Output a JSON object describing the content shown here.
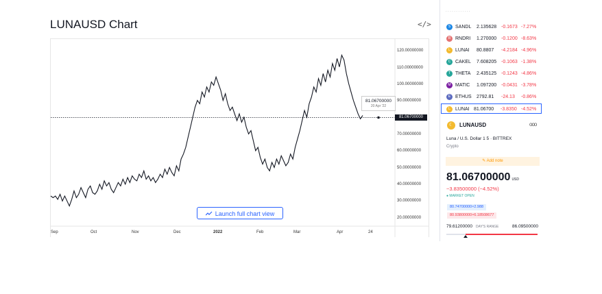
{
  "header": {
    "title": "LUNAUSD Chart",
    "embed_icon": "</>"
  },
  "chart": {
    "y_ticks": [
      "120.00000000",
      "110.00000000",
      "100.00000000",
      "90.00000000",
      "80.00000000",
      "70.00000000",
      "60.00000000",
      "50.00000000",
      "40.00000000",
      "30.00000000",
      "20.00000000"
    ],
    "x_ticks": [
      "Sep",
      "Oct",
      "Nov",
      "Dec",
      "2022",
      "Feb",
      "Mar",
      "Apr",
      "24"
    ],
    "price_tag": "81.06700000",
    "tooltip_value": "81.06700000",
    "tooltip_date": "20 Apr '22",
    "launch_label": "Launch full chart view"
  },
  "chart_data": {
    "type": "line",
    "ylim": [
      15,
      127
    ],
    "series": [
      {
        "values": [
          33,
          32,
          33,
          31,
          34,
          30,
          33,
          30,
          27,
          31,
          36,
          32,
          34,
          38,
          35,
          32,
          37,
          39,
          35,
          34,
          36,
          40,
          37,
          42,
          39,
          41,
          37,
          35,
          38,
          41,
          39,
          43,
          40,
          44,
          41,
          45,
          43,
          42,
          46,
          44,
          48,
          43,
          45,
          42,
          44,
          41,
          43,
          46,
          44,
          49,
          46,
          50,
          47,
          45,
          51,
          48,
          55,
          58,
          62,
          68,
          74,
          80,
          86,
          90,
          88,
          95,
          92,
          98,
          95,
          101,
          99,
          104,
          100,
          96,
          90,
          94,
          88,
          84,
          86,
          82,
          78,
          82,
          77,
          80,
          74,
          70,
          72,
          66,
          60,
          62,
          56,
          52,
          55,
          50,
          48,
          53,
          50,
          55,
          52,
          57,
          54,
          51,
          53,
          58,
          55,
          62,
          67,
          72,
          78,
          84,
          80,
          88,
          92,
          98,
          95,
          103,
          99,
          106,
          101,
          108,
          104,
          112,
          108,
          115,
          110,
          117,
          114,
          106,
          100,
          95,
          90,
          86,
          82,
          79,
          81.067
        ]
      }
    ]
  },
  "watchlist": {
    "header_fade": "",
    "rows": [
      {
        "sym": "SANDL",
        "last": "2.135628",
        "chg": "-0.1673",
        "pct": "-7.27%",
        "icon": "S",
        "color": "#1e88e5"
      },
      {
        "sym": "RNDRI",
        "last": "1.270000",
        "chg": "-0.1200",
        "pct": "-8.63%",
        "icon": "R",
        "color": "#e57373"
      },
      {
        "sym": "LUNAI",
        "last": "80.8807",
        "chg": "-4.2184",
        "pct": "-4.96%",
        "icon": "L",
        "color": "#f3ba2f"
      },
      {
        "sym": "CAKEL",
        "last": "7.608205",
        "chg": "-0.1063",
        "pct": "-1.38%",
        "icon": "C",
        "color": "#26a69a"
      },
      {
        "sym": "THETA",
        "last": "2.435125",
        "chg": "-0.1243",
        "pct": "-4.86%",
        "icon": "T",
        "color": "#26a69a"
      },
      {
        "sym": "MATIC",
        "last": "1.097200",
        "chg": "-0.0431",
        "pct": "-3.78%",
        "icon": "M",
        "color": "#7b1fa2"
      },
      {
        "sym": "ETHUS",
        "last": "2792.81",
        "chg": "-24.13",
        "pct": "-0.86%",
        "icon": "E",
        "color": "#5c6bc0"
      },
      {
        "sym": "LUNAI",
        "last": "81.06700",
        "chg": "-3.8350",
        "pct": "-4.52%",
        "icon": "L",
        "color": "#f3ba2f"
      }
    ]
  },
  "details": {
    "symbol": "LUNAUSD",
    "more": "ooo",
    "description": "Luna / U.S. Dollar 1 5 · BITTREX",
    "type": "Crypto",
    "add_note": "Add note",
    "price": "81.06700000",
    "currency": "USD",
    "change": "−3.83500000 (−4.52%)",
    "market_status": "● MARKET OPEN",
    "bid": "80.74700000×2.988",
    "ask": "80.93800000×6.18508677",
    "range_low": "79.61200000",
    "range_label": "DAY'S RANGE",
    "range_high": "86.09500000",
    "range_fraction": 0.21
  }
}
